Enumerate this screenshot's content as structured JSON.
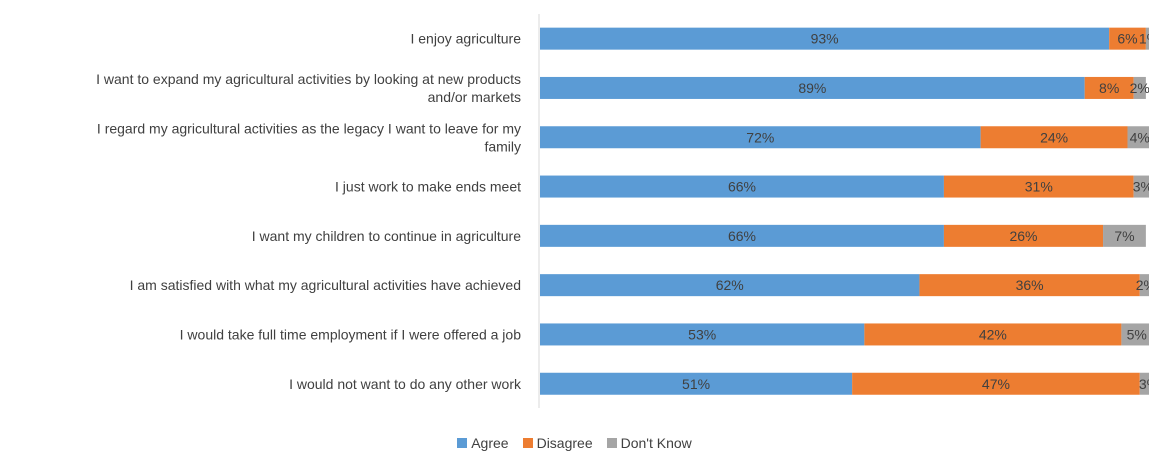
{
  "chart_data": {
    "type": "bar",
    "orientation": "horizontal",
    "stacked": true,
    "percent_scale": [
      0,
      100
    ],
    "categories": [
      [
        "I enjoy agriculture"
      ],
      [
        "I want to expand my agricultural activities by looking at new products",
        "and/or markets"
      ],
      [
        "I regard my agricultural activities as the legacy I want to leave for my",
        "family"
      ],
      [
        "I just work to make ends meet"
      ],
      [
        "I want my children to continue in agriculture"
      ],
      [
        "I am satisfied with what my agricultural activities have achieved"
      ],
      [
        "I would take full time employment if I were offered a job"
      ],
      [
        "I would not want to do any other work"
      ]
    ],
    "series": [
      {
        "name": "Agree",
        "color": "#5b9bd5",
        "values": [
          93,
          89,
          72,
          66,
          66,
          62,
          53,
          51
        ]
      },
      {
        "name": "Disagree",
        "color": "#ed7d31",
        "values": [
          6,
          8,
          24,
          31,
          26,
          36,
          42,
          47
        ]
      },
      {
        "name": "Don't Know",
        "color": "#a5a5a5",
        "values": [
          1,
          2,
          4,
          3,
          7,
          2,
          5,
          3
        ]
      }
    ],
    "data_label_suffix": "%",
    "legend_position": "bottom",
    "grid": false
  }
}
